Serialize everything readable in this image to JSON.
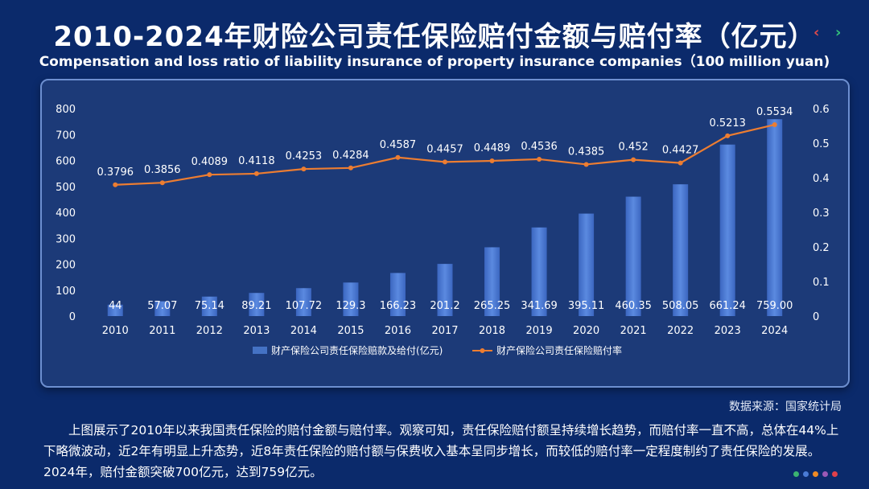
{
  "header": {
    "title": "2010-2024年财险公司责任保险赔付金额与赔付率（亿元）",
    "subtitle": "Compensation and loss ratio of liability insurance of property insurance companies（100 million yuan)",
    "prev_label": "‹",
    "next_label": "›"
  },
  "chart_data": {
    "type": "bar",
    "categories": [
      "2010",
      "2011",
      "2012",
      "2013",
      "2014",
      "2015",
      "2016",
      "2017",
      "2018",
      "2019",
      "2020",
      "2021",
      "2022",
      "2023",
      "2024"
    ],
    "series": [
      {
        "name": "财产保险公司责任保险赔款及给付(亿元)",
        "type": "bar",
        "axis": "left",
        "color": "#4472c4",
        "values": [
          44,
          57.07,
          75.14,
          89.21,
          107.72,
          129.3,
          166.23,
          201.2,
          265.25,
          341.69,
          395.11,
          460.35,
          508.05,
          661.24,
          759.0
        ],
        "labels": [
          "44",
          "57.07",
          "75.14",
          "89.21",
          "107.72",
          "129.3",
          "166.23",
          "201.2",
          "265.25",
          "341.69",
          "395.11",
          "460.35",
          "508.05",
          "661.24",
          "759.00"
        ]
      },
      {
        "name": "财产保险公司责任保险赔付率",
        "type": "line",
        "axis": "right",
        "color": "#ed7d31",
        "values": [
          0.3796,
          0.3856,
          0.4089,
          0.4118,
          0.4253,
          0.4284,
          0.4587,
          0.4457,
          0.4489,
          0.4536,
          0.4385,
          0.452,
          0.4427,
          0.5213,
          0.5534
        ],
        "labels": [
          "0.3796",
          "0.3856",
          "0.4089",
          "0.4118",
          "0.4253",
          "0.4284",
          "0.4587",
          "0.4457",
          "0.4489",
          "0.4536",
          "0.4385",
          "0.452",
          "0.4427",
          "0.5213",
          "0.5534"
        ]
      }
    ],
    "y_left": {
      "min": 0,
      "max": 800,
      "ticks": [
        "0",
        "100",
        "200",
        "300",
        "400",
        "500",
        "600",
        "700",
        "800"
      ]
    },
    "y_right": {
      "min": 0,
      "max": 0.6,
      "ticks": [
        "0",
        "0.1",
        "0.2",
        "0.3",
        "0.4",
        "0.5",
        "0.6"
      ]
    },
    "grid": false,
    "legend_position": "bottom"
  },
  "source": "数据来源：国家统计局",
  "description": "上图展示了2010年以来我国责任保险的赔付金额与赔付率。观察可知，责任保险赔付额呈持续增长趋势，而赔付率一直不高，总体在44%上下略微波动，近2年有明显上升态势，近8年责任保险的赔付额与保费收入基本呈同步增长，而较低的赔付率一定程度制约了责任保险的发展。2024年，赔付金额突破700亿元，达到759亿元。",
  "decor": {
    "dot_colors": [
      "#3cb371",
      "#4a7bd6",
      "#f08a24",
      "#9b59b6",
      "#e0404a"
    ]
  }
}
